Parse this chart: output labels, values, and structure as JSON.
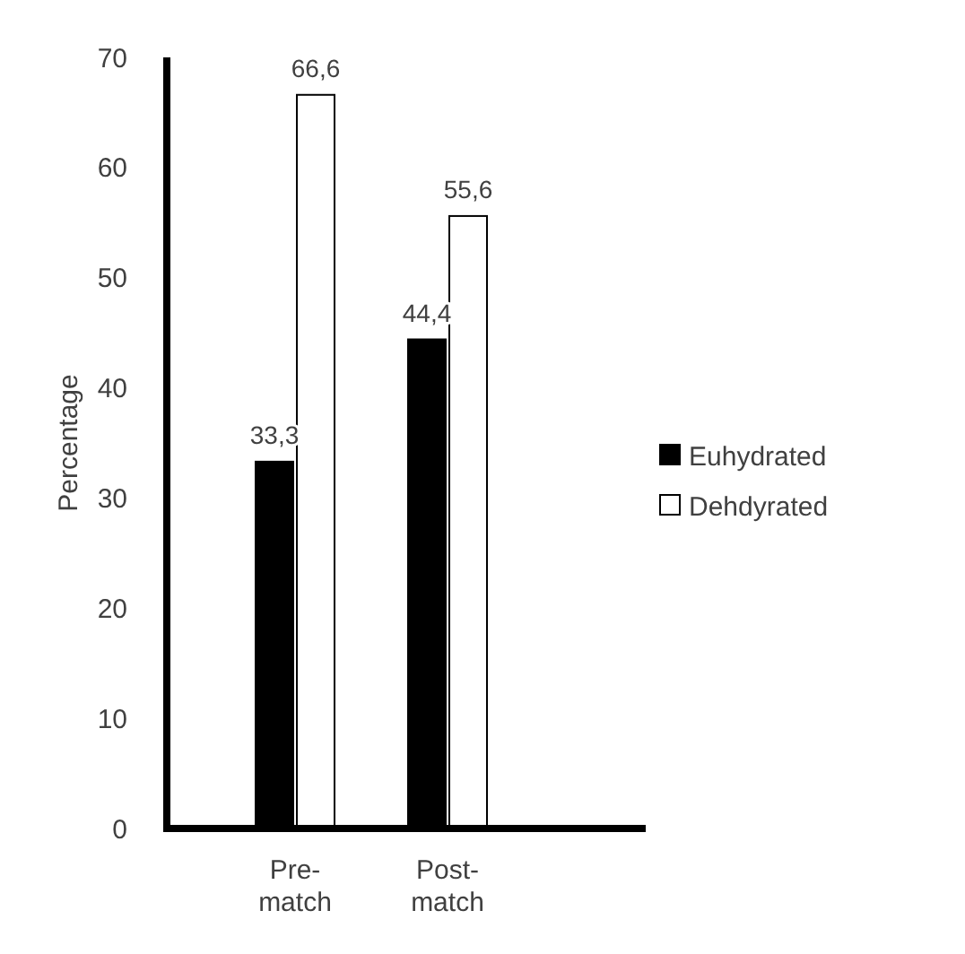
{
  "chart_data": {
    "type": "bar",
    "ylabel": "Percentage",
    "categories": [
      "Pre-match",
      "Post-match",
      null
    ],
    "series": [
      {
        "name": "Euhydrated",
        "color": "#000000",
        "values": [
          33.3,
          44.4,
          null
        ],
        "value_labels": [
          "33,3",
          "44,4",
          null
        ]
      },
      {
        "name": "Dehdyrated",
        "color": "#ffffff",
        "values": [
          66.6,
          55.6,
          null
        ],
        "value_labels": [
          "66,6",
          "55,6",
          null
        ]
      }
    ],
    "ylim": [
      0,
      70
    ],
    "yticks": [
      0,
      10,
      20,
      30,
      40,
      50,
      60,
      70
    ],
    "legend": "right",
    "grid": false
  }
}
